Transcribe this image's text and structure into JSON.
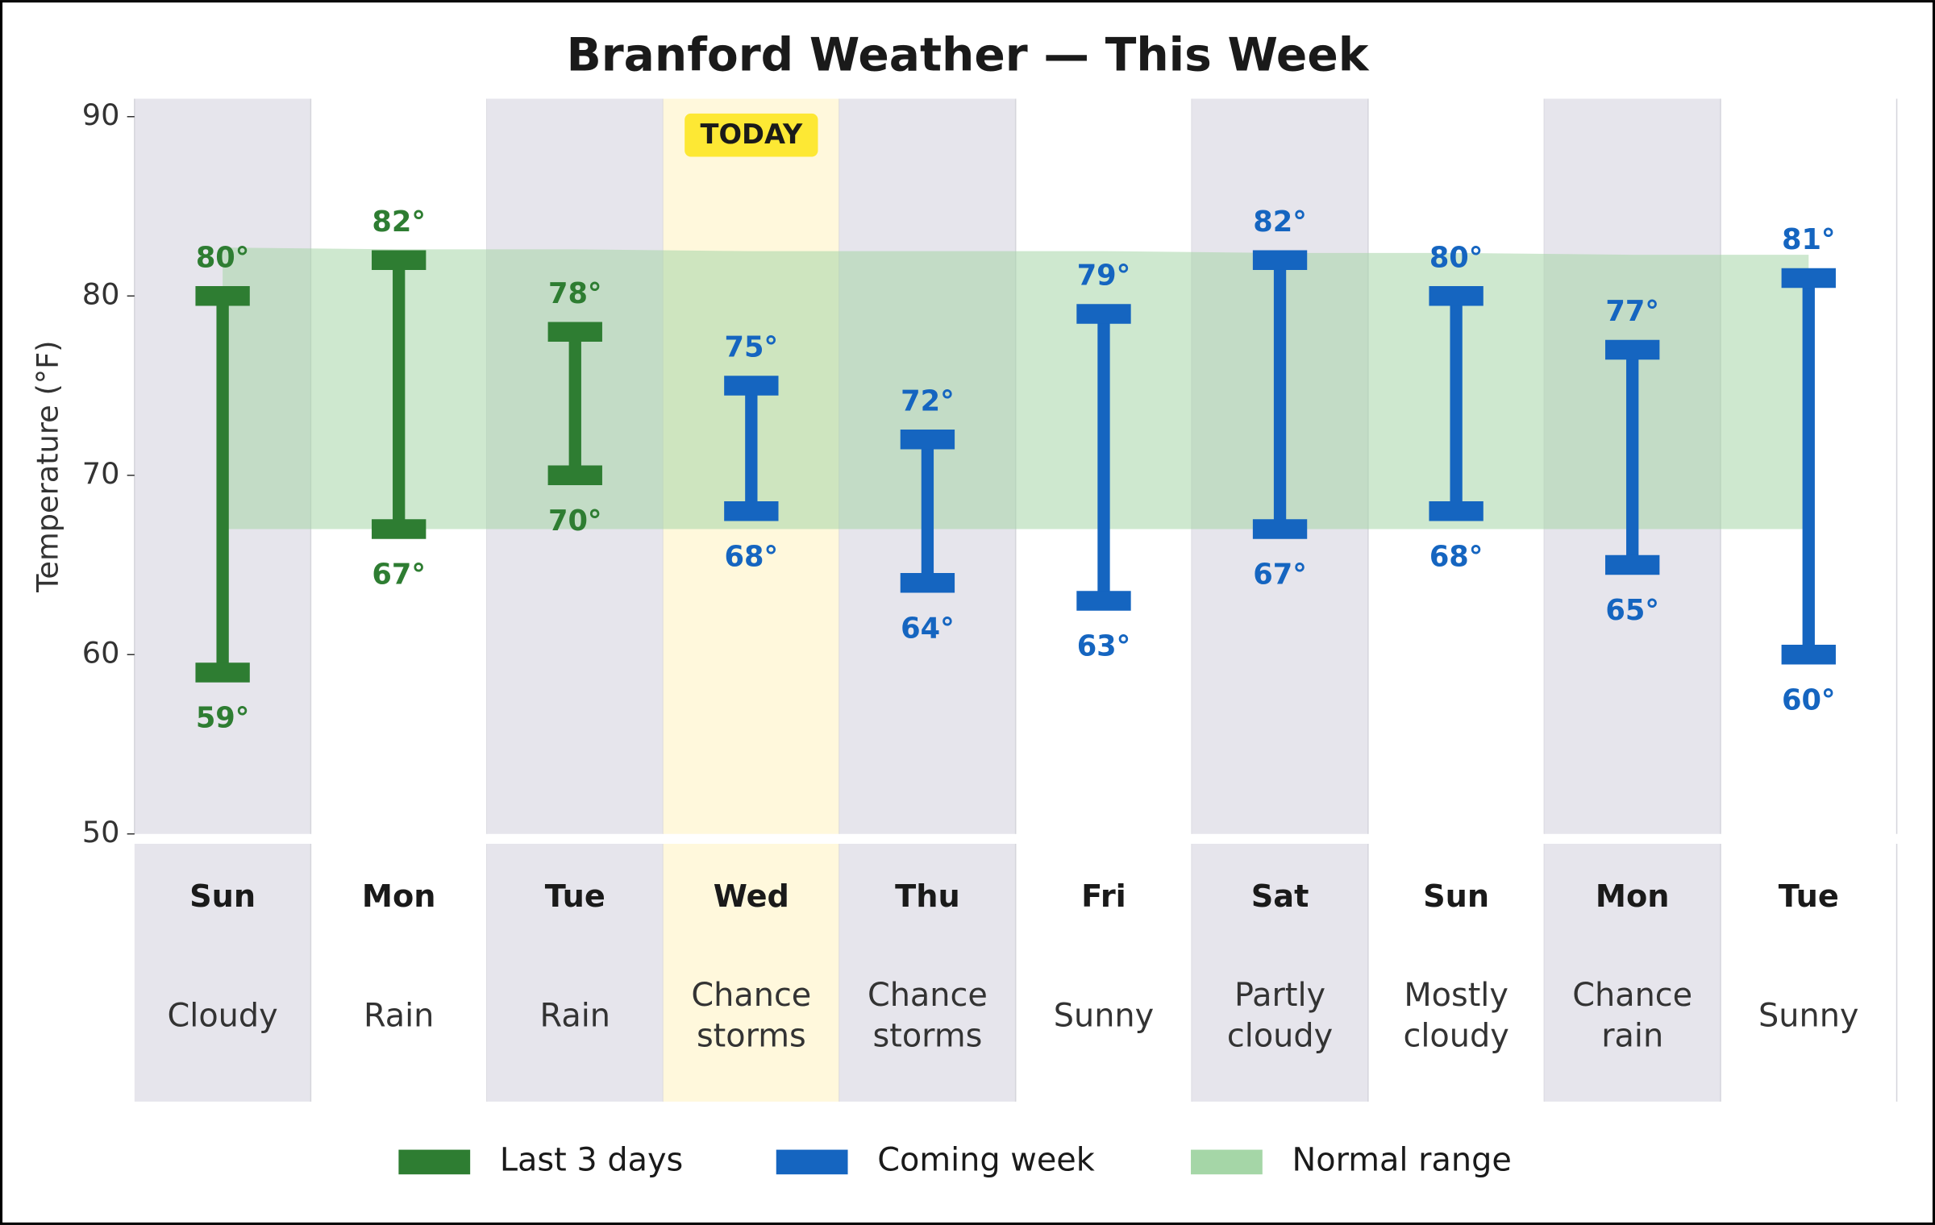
{
  "chart_data": {
    "type": "range",
    "title": "Branford Weather — This Week",
    "y_label": "Temperature (°F)",
    "ylim": [
      50,
      91
    ],
    "yticks": [
      50,
      60,
      70,
      80,
      90
    ],
    "categories": [
      "Sun",
      "Mon",
      "Tue",
      "Wed",
      "Thu",
      "Fri",
      "Sat",
      "Sun",
      "Mon",
      "Tue"
    ],
    "conditions": [
      [
        "Cloudy"
      ],
      [
        "Rain"
      ],
      [
        "Rain"
      ],
      [
        "Chance",
        "storms"
      ],
      [
        "Chance",
        "storms"
      ],
      [
        "Sunny"
      ],
      [
        "Partly",
        "cloudy"
      ],
      [
        "Mostly",
        "cloudy"
      ],
      [
        "Chance",
        "rain"
      ],
      [
        "Sunny"
      ]
    ],
    "today_index": 3,
    "today_label": "TODAY",
    "today_color": "#fff8dc",
    "shade_color": "#e6e5ec",
    "series": [
      {
        "name": "Last 3 days",
        "color": "#2e7d32",
        "highs": [
          80,
          82,
          78,
          null,
          null,
          null,
          null,
          null,
          null,
          null
        ],
        "lows": [
          59,
          67,
          70,
          null,
          null,
          null,
          null,
          null,
          null,
          null
        ],
        "high_labels": [
          "80°",
          "82°",
          "78°",
          null,
          null,
          null,
          null,
          null,
          null,
          null
        ],
        "low_labels": [
          "59°",
          "67°",
          "70°",
          null,
          null,
          null,
          null,
          null,
          null,
          null
        ]
      },
      {
        "name": "Coming week",
        "color": "#1565c0",
        "highs": [
          null,
          null,
          null,
          75,
          72,
          79,
          82,
          80,
          77,
          81
        ],
        "lows": [
          null,
          null,
          null,
          68,
          64,
          63,
          67,
          68,
          65,
          60
        ],
        "high_labels": [
          null,
          null,
          null,
          "75°",
          "72°",
          "79°",
          "82°",
          "80°",
          "77°",
          "81°"
        ],
        "low_labels": [
          null,
          null,
          null,
          "68°",
          "64°",
          "63°",
          "67°",
          "68°",
          "65°",
          "60°"
        ]
      }
    ],
    "normal_range": {
      "name": "Normal range",
      "color": "#a5d6a7",
      "highs": [
        82.7,
        82.6,
        82.6,
        82.5,
        82.5,
        82.5,
        82.4,
        82.4,
        82.3,
        82.3
      ],
      "lows": [
        67,
        67,
        67,
        67,
        67,
        67,
        67,
        67,
        67,
        67
      ]
    }
  }
}
